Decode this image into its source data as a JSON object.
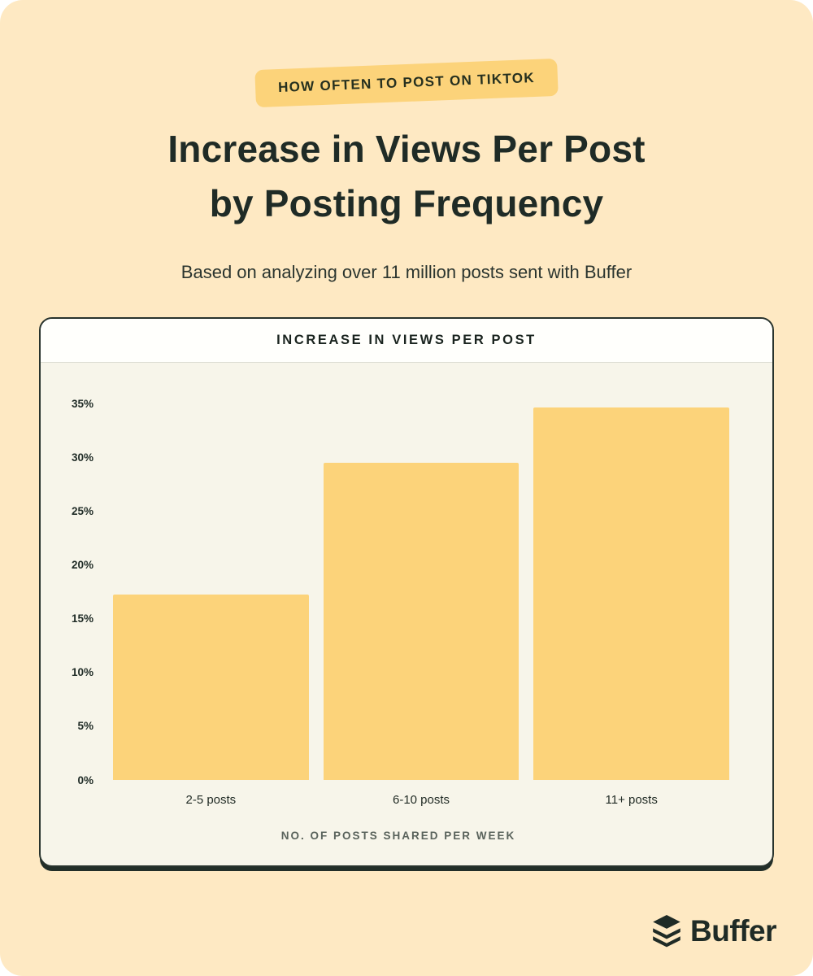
{
  "header": {
    "badge": "HOW OFTEN TO POST ON TIKTOK",
    "title_line1": "Increase in Views Per Post",
    "title_line2": "by Posting Frequency",
    "subtitle": "Based on analyzing over 11 million posts sent with Buffer"
  },
  "footer": {
    "brand": "Buffer"
  },
  "colors": {
    "page_bg": "#FEE9C3",
    "accent_yellow": "#FCD37A",
    "ink": "#1F2B26",
    "card_bg": "#F7F5EA",
    "card_header_bg": "#FFFFFC",
    "card_border": "#28332D",
    "axis_muted": "#5A635C"
  },
  "chart_data": {
    "type": "bar",
    "title": "INCREASE IN VIEWS PER POST",
    "categories": [
      "2-5 posts",
      "6-10 posts",
      "11+ posts"
    ],
    "values": [
      17.2,
      29.5,
      34.6
    ],
    "xlabel": "NO. OF POSTS SHARED PER WEEK",
    "ylabel": "",
    "ylim": [
      0,
      35
    ],
    "ytick_step": 5,
    "ytick_labels": [
      "0%",
      "5%",
      "10%",
      "15%",
      "20%",
      "25%",
      "30%",
      "35%"
    ],
    "grid": false,
    "legend": false,
    "bar_color": "#FCD37A"
  }
}
